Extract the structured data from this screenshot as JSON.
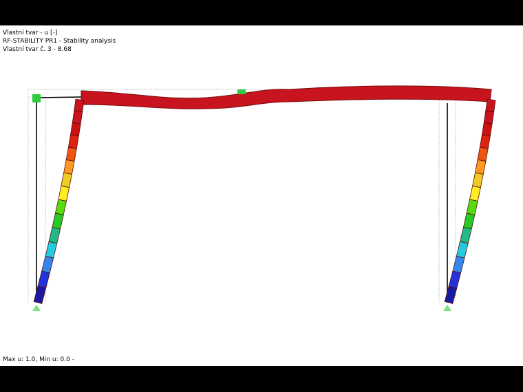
{
  "header": {
    "lines": [
      "Vlastní tvar - u [-]",
      "RF-STABILITY PR1 - Stability analysis",
      "Vlastní tvar č. 3  -  8.68"
    ]
  },
  "footer": {
    "text": "Max u: 1.0, Min u: 0.0 -"
  }
}
